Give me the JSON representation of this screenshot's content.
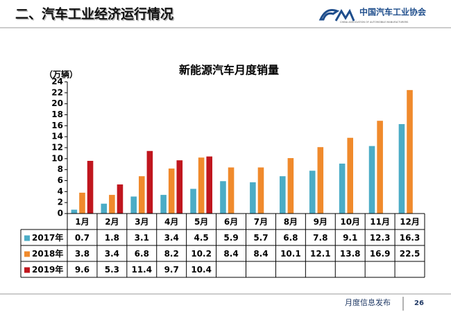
{
  "header": {
    "title": "二、汽车工业经济运行情况",
    "logo_cn": "中国汽车工业协会",
    "logo_en": "CHINA ASSOCIATION OF AUTOMOBILE MANUFACTURERS"
  },
  "chart_data": {
    "type": "bar",
    "title": "新能源汽车月度销量",
    "y_label": "（万辆）",
    "categories": [
      "1月",
      "2月",
      "3月",
      "4月",
      "5月",
      "6月",
      "7月",
      "8月",
      "9月",
      "10月",
      "11月",
      "12月"
    ],
    "series": [
      {
        "name": "2017年",
        "color": "#4bacc6",
        "values": [
          0.7,
          1.8,
          3.1,
          3.4,
          4.5,
          5.9,
          5.7,
          6.8,
          7.8,
          9.1,
          12.3,
          16.3
        ]
      },
      {
        "name": "2018年",
        "color": "#f08a2c",
        "values": [
          3.8,
          3.4,
          6.8,
          8.2,
          10.2,
          8.4,
          8.4,
          10.1,
          12.1,
          13.8,
          16.9,
          22.5
        ]
      },
      {
        "name": "2019年",
        "color": "#c0161e",
        "values": [
          9.6,
          5.3,
          11.4,
          9.7,
          10.4,
          null,
          null,
          null,
          null,
          null,
          null,
          null
        ]
      }
    ],
    "ylim": [
      0,
      24
    ],
    "yticks": [
      0,
      2,
      4,
      6,
      8,
      10,
      12,
      14,
      16,
      18,
      20,
      22,
      24
    ]
  },
  "footer": {
    "text": "月度信息发布",
    "page": "26"
  }
}
